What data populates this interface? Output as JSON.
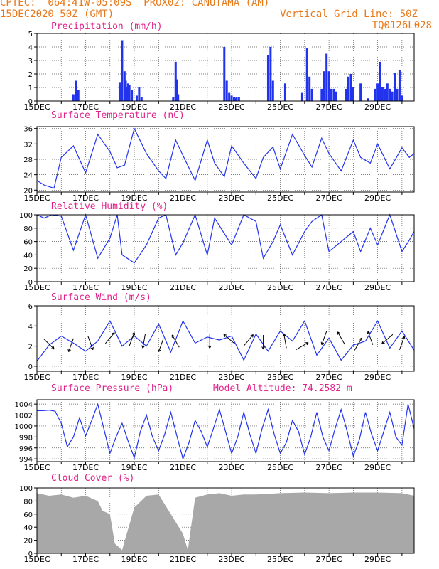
{
  "header": {
    "line1": "CPTEC:  064:41W-05:09S  PROX02: CANUTAMA (AM)",
    "line2_left": "15DEC2020 50Z (GMT)",
    "line2_right": "Vertical Grid Line: 50Z",
    "line3_right": "TQ0126L028",
    "color": "#e87a1e"
  },
  "colors": {
    "title": "#e0218a",
    "line": "#2233ee",
    "bar": "#2233ee",
    "cloud": "#a8a8a8",
    "frame": "#000000"
  },
  "x_tick_labels": [
    "15DEC",
    "17DEC",
    "19DEC",
    "21DEC",
    "23DEC",
    "25DEC",
    "27DEC",
    "29DEC"
  ],
  "x_domain": [
    0,
    15.5
  ],
  "chart_data": [
    {
      "type": "bar",
      "title": "Precipitation (mm/h)",
      "ylim": [
        0,
        5
      ],
      "yticks": [
        "0",
        "1",
        "2",
        "3",
        "4",
        "5"
      ],
      "x_days": [
        1.5,
        1.6,
        1.7,
        3.4,
        3.5,
        3.6,
        3.65,
        3.7,
        3.75,
        3.8,
        3.9,
        4.1,
        4.2,
        4.3,
        5.6,
        5.7,
        5.75,
        5.8,
        7.7,
        7.8,
        7.9,
        8.0,
        8.1,
        8.15,
        8.2,
        8.3,
        9.5,
        9.6,
        9.7,
        10.2,
        10.9,
        11.1,
        11.2,
        11.3,
        11.7,
        11.8,
        11.9,
        12.0,
        12.1,
        12.2,
        12.3,
        12.7,
        12.8,
        12.9,
        13.0,
        13.3,
        13.6,
        13.9,
        14.0,
        14.1,
        14.2,
        14.3,
        14.4,
        14.5,
        14.6,
        14.7,
        14.8,
        14.9,
        15.0
      ],
      "values": [
        0.5,
        1.5,
        0.8,
        1.4,
        4.5,
        2.2,
        1.5,
        1.0,
        1.3,
        1.2,
        0.8,
        0.4,
        1.0,
        0.3,
        0.3,
        2.9,
        1.6,
        0.5,
        4.0,
        1.5,
        0.6,
        0.4,
        0.3,
        0.2,
        0.3,
        0.3,
        3.4,
        4.0,
        1.5,
        1.3,
        0.6,
        3.9,
        1.8,
        0.9,
        0.9,
        2.2,
        3.5,
        2.2,
        0.9,
        0.9,
        0.7,
        0.9,
        1.8,
        2.0,
        1.0,
        1.3,
        0.2,
        0.9,
        1.3,
        2.9,
        1.0,
        0.9,
        1.3,
        0.9,
        0.7,
        2.1,
        0.9,
        2.3,
        0.4
      ]
    },
    {
      "type": "line",
      "title": "Surface Temperature (nC)",
      "ylim": [
        19.5,
        36.5
      ],
      "yticks": [
        "20",
        "24",
        "28",
        "32",
        "36"
      ],
      "x_days": [
        0.0,
        0.3,
        0.7,
        1.0,
        1.5,
        2.0,
        2.5,
        3.0,
        3.3,
        3.6,
        4.0,
        4.5,
        5.0,
        5.3,
        5.7,
        6.0,
        6.5,
        7.0,
        7.3,
        7.7,
        8.0,
        8.5,
        9.0,
        9.3,
        9.7,
        10.0,
        10.5,
        11.0,
        11.3,
        11.7,
        12.0,
        12.5,
        13.0,
        13.3,
        13.7,
        14.0,
        14.5,
        15.0,
        15.3,
        15.5
      ],
      "values": [
        22.5,
        21.3,
        20.5,
        28.5,
        31.5,
        24.5,
        34.5,
        30.0,
        25.8,
        26.5,
        36.0,
        29.5,
        25.0,
        23.0,
        33.0,
        29.0,
        22.5,
        33.0,
        27.0,
        23.5,
        31.5,
        27.0,
        23.0,
        28.5,
        31.2,
        25.5,
        34.5,
        29.0,
        26.0,
        33.5,
        29.5,
        25.0,
        33.0,
        28.5,
        27.0,
        32.0,
        25.5,
        31.0,
        28.5,
        29.5
      ]
    },
    {
      "type": "line",
      "title": "Relative Humidity (%)",
      "ylim": [
        0,
        100
      ],
      "yticks": [
        "0",
        "20",
        "40",
        "60",
        "80",
        "100"
      ],
      "x_days": [
        0.0,
        0.3,
        0.6,
        1.0,
        1.5,
        2.0,
        2.5,
        3.0,
        3.3,
        3.5,
        4.0,
        4.5,
        5.0,
        5.3,
        5.7,
        6.0,
        6.5,
        7.0,
        7.3,
        7.7,
        8.0,
        8.5,
        9.0,
        9.3,
        9.7,
        10.0,
        10.5,
        11.0,
        11.3,
        11.7,
        12.0,
        12.5,
        13.0,
        13.3,
        13.7,
        14.0,
        14.5,
        15.0,
        15.3,
        15.5
      ],
      "values": [
        100,
        95,
        100,
        98,
        47,
        100,
        35,
        65,
        100,
        40,
        28,
        55,
        95,
        100,
        40,
        58,
        100,
        40,
        95,
        72,
        55,
        100,
        90,
        35,
        60,
        85,
        40,
        75,
        90,
        100,
        45,
        60,
        75,
        45,
        80,
        55,
        100,
        45,
        62,
        75
      ]
    },
    {
      "type": "line",
      "title": "Surface Wind (m/s)",
      "ylim": [
        -0.5,
        6
      ],
      "yticks": [
        "0",
        "2",
        "4",
        "6"
      ],
      "x_days": [
        0.0,
        0.5,
        1.0,
        1.5,
        2.0,
        2.5,
        3.0,
        3.5,
        4.0,
        4.5,
        5.0,
        5.5,
        6.0,
        6.5,
        7.0,
        7.5,
        8.0,
        8.5,
        9.0,
        9.5,
        10.0,
        10.5,
        11.0,
        11.5,
        12.0,
        12.5,
        13.0,
        13.5,
        14.0,
        14.5,
        15.0,
        15.5
      ],
      "values": [
        0.5,
        2.1,
        3.0,
        2.3,
        1.5,
        2.5,
        4.5,
        2.0,
        3.0,
        2.0,
        4.2,
        1.4,
        4.5,
        2.3,
        2.9,
        2.6,
        3.0,
        0.6,
        3.2,
        1.5,
        3.5,
        2.5,
        4.5,
        1.1,
        2.8,
        0.6,
        2.1,
        2.5,
        4.5,
        1.8,
        3.5,
        1.6
      ],
      "arrows": [
        {
          "day": 0.5,
          "speed": 2.2,
          "dir_deg": 135
        },
        {
          "day": 1.4,
          "speed": 2.1,
          "dir_deg": 200
        },
        {
          "day": 2.2,
          "speed": 2.3,
          "dir_deg": 160
        },
        {
          "day": 3.0,
          "speed": 2.8,
          "dir_deg": 40
        },
        {
          "day": 3.9,
          "speed": 2.7,
          "dir_deg": 20
        },
        {
          "day": 4.4,
          "speed": 2.5,
          "dir_deg": 190
        },
        {
          "day": 5.1,
          "speed": 2.1,
          "dir_deg": 200
        },
        {
          "day": 5.7,
          "speed": 2.5,
          "dir_deg": 330
        },
        {
          "day": 7.1,
          "speed": 2.5,
          "dir_deg": 180
        },
        {
          "day": 7.9,
          "speed": 2.7,
          "dir_deg": 310
        },
        {
          "day": 8.7,
          "speed": 2.6,
          "dir_deg": 40
        },
        {
          "day": 9.3,
          "speed": 2.4,
          "dir_deg": 180
        },
        {
          "day": 10.2,
          "speed": 2.5,
          "dir_deg": 350
        },
        {
          "day": 10.9,
          "speed": 2.0,
          "dir_deg": 60
        },
        {
          "day": 11.8,
          "speed": 2.8,
          "dir_deg": 200
        },
        {
          "day": 12.5,
          "speed": 2.8,
          "dir_deg": 330
        },
        {
          "day": 13.2,
          "speed": 2.2,
          "dir_deg": 30
        },
        {
          "day": 13.7,
          "speed": 2.8,
          "dir_deg": 340
        },
        {
          "day": 14.4,
          "speed": 2.7,
          "dir_deg": 230
        },
        {
          "day": 15.0,
          "speed": 2.3,
          "dir_deg": 20
        }
      ]
    },
    {
      "type": "line",
      "title": "Surface Pressure (hPa)",
      "annotation": "Model Altitude: 74.2582 m",
      "ylim": [
        993.5,
        1004.8
      ],
      "yticks": [
        "994",
        "996",
        "998",
        "1000",
        "1002",
        "1004"
      ],
      "x_days": [
        0.0,
        0.25,
        0.5,
        0.75,
        1.0,
        1.25,
        1.5,
        1.75,
        2.0,
        2.25,
        2.5,
        2.75,
        3.0,
        3.25,
        3.5,
        3.75,
        4.0,
        4.25,
        4.5,
        4.75,
        5.0,
        5.25,
        5.5,
        5.75,
        6.0,
        6.25,
        6.5,
        6.75,
        7.0,
        7.25,
        7.5,
        7.75,
        8.0,
        8.25,
        8.5,
        8.75,
        9.0,
        9.25,
        9.5,
        9.75,
        10.0,
        10.25,
        10.5,
        10.75,
        11.0,
        11.25,
        11.5,
        11.75,
        12.0,
        12.25,
        12.5,
        12.75,
        13.0,
        13.25,
        13.5,
        13.75,
        14.0,
        14.25,
        14.5,
        14.75,
        15.0,
        15.25,
        15.5
      ],
      "values": [
        1002.8,
        1002.8,
        1002.9,
        1002.7,
        1000.5,
        996.2,
        998.0,
        1001.5,
        998.2,
        1001.0,
        1004.0,
        999.5,
        995.0,
        998.0,
        1000.5,
        997.2,
        994.2,
        999.0,
        1002.0,
        998.0,
        995.5,
        998.5,
        1002.5,
        998.2,
        994.0,
        997.0,
        1001.0,
        999.0,
        996.2,
        999.5,
        1003.0,
        999.0,
        995.0,
        998.0,
        1002.5,
        998.5,
        995.0,
        999.5,
        1003.0,
        998.5,
        995.0,
        997.0,
        1001.0,
        999.0,
        994.8,
        998.0,
        1002.5,
        998.0,
        995.5,
        999.5,
        1003.0,
        999.0,
        994.5,
        997.5,
        1002.5,
        998.5,
        995.5,
        999.0,
        1002.5,
        998.0,
        996.5,
        1004.0,
        999.5
      ]
    },
    {
      "type": "area",
      "title": "Cloud Cover (%)",
      "ylim": [
        0,
        100
      ],
      "yticks": [
        "0",
        "20",
        "40",
        "60",
        "80",
        "100"
      ],
      "x_days": [
        0.0,
        0.5,
        1.0,
        1.5,
        2.0,
        2.5,
        2.7,
        3.0,
        3.2,
        3.5,
        4.0,
        4.5,
        5.0,
        5.5,
        6.0,
        6.2,
        6.5,
        7.0,
        7.5,
        8.0,
        8.5,
        9.0,
        10.0,
        11.0,
        12.0,
        13.0,
        14.0,
        15.0,
        15.5
      ],
      "values": [
        92,
        88,
        90,
        85,
        88,
        80,
        65,
        60,
        15,
        5,
        70,
        88,
        90,
        60,
        30,
        5,
        85,
        90,
        92,
        88,
        90,
        90,
        92,
        93,
        92,
        93,
        93,
        92,
        88
      ]
    }
  ]
}
